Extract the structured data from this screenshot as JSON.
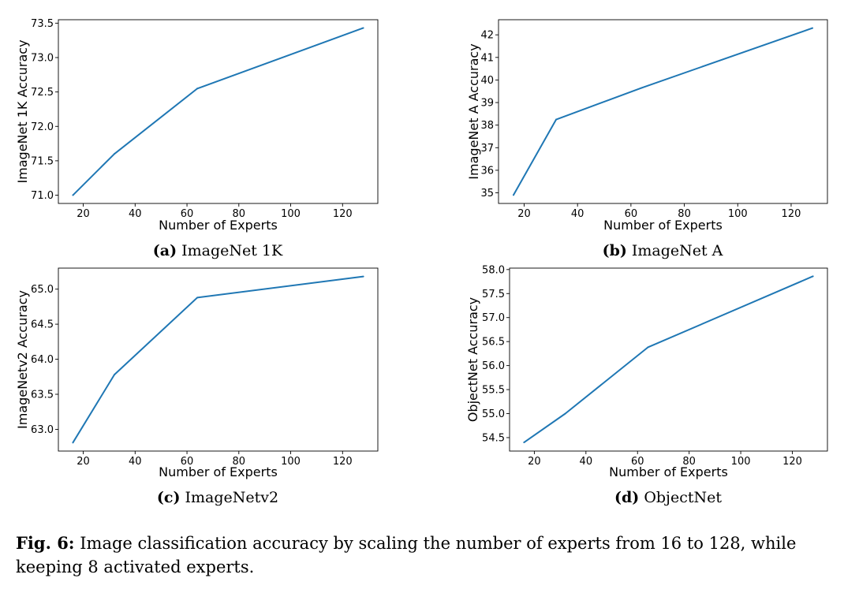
{
  "figure": {
    "label": "Fig. 6:",
    "text": "Image classification accuracy by scaling the number of experts from 16 to 128, while keeping 8 activated experts."
  },
  "line_color": "#1f77b4",
  "chart_data": [
    {
      "type": "line",
      "panel_label": "(a)",
      "panel_title": "ImageNet 1K",
      "xlabel": "Number of Experts",
      "ylabel": "ImageNet 1K Accuracy",
      "x": [
        16,
        32,
        64,
        128
      ],
      "y": [
        71.0,
        71.6,
        72.55,
        73.43
      ],
      "xlim": [
        10.4,
        133.6
      ],
      "ylim": [
        70.88,
        73.55
      ],
      "xticks": [
        20,
        40,
        60,
        80,
        100,
        120
      ],
      "xtick_labels": [
        "20",
        "40",
        "60",
        "80",
        "100",
        "120"
      ],
      "yticks": [
        71.0,
        71.5,
        72.0,
        72.5,
        73.0,
        73.5
      ],
      "ytick_labels": [
        "71.0",
        "71.5",
        "72.0",
        "72.5",
        "73.0",
        "73.5"
      ],
      "grid": false
    },
    {
      "type": "line",
      "panel_label": "(b)",
      "panel_title": "ImageNet A",
      "xlabel": "Number of Experts",
      "ylabel": "ImageNet A Accuracy",
      "x": [
        16,
        32,
        64,
        128
      ],
      "y": [
        34.9,
        38.25,
        39.65,
        42.3
      ],
      "xlim": [
        10.4,
        133.6
      ],
      "ylim": [
        34.53,
        42.67
      ],
      "xticks": [
        20,
        40,
        60,
        80,
        100,
        120
      ],
      "xtick_labels": [
        "20",
        "40",
        "60",
        "80",
        "100",
        "120"
      ],
      "yticks": [
        35,
        36,
        37,
        38,
        39,
        40,
        41,
        42
      ],
      "ytick_labels": [
        "35",
        "36",
        "37",
        "38",
        "39",
        "40",
        "41",
        "42"
      ],
      "grid": false
    },
    {
      "type": "line",
      "panel_label": "(c)",
      "panel_title": "ImageNetv2",
      "xlabel": "Number of Experts",
      "ylabel": "ImageNetv2 Accuracy",
      "x": [
        16,
        32,
        64,
        128
      ],
      "y": [
        62.81,
        63.78,
        64.88,
        65.18
      ],
      "xlim": [
        10.4,
        133.6
      ],
      "ylim": [
        62.69,
        65.3
      ],
      "xticks": [
        20,
        40,
        60,
        80,
        100,
        120
      ],
      "xtick_labels": [
        "20",
        "40",
        "60",
        "80",
        "100",
        "120"
      ],
      "yticks": [
        63.0,
        63.5,
        64.0,
        64.5,
        65.0
      ],
      "ytick_labels": [
        "63.0",
        "63.5",
        "64.0",
        "64.5",
        "65.0"
      ],
      "grid": false
    },
    {
      "type": "line",
      "panel_label": "(d)",
      "panel_title": "ObjectNet",
      "xlabel": "Number of Experts",
      "ylabel": "ObjectNet Accuracy",
      "x": [
        16,
        32,
        64,
        128
      ],
      "y": [
        54.4,
        55.0,
        56.38,
        57.86
      ],
      "xlim": [
        10.4,
        133.6
      ],
      "ylim": [
        54.22,
        58.03
      ],
      "xticks": [
        20,
        40,
        60,
        80,
        100,
        120
      ],
      "xtick_labels": [
        "20",
        "40",
        "60",
        "80",
        "100",
        "120"
      ],
      "yticks": [
        54.5,
        55.0,
        55.5,
        56.0,
        56.5,
        57.0,
        57.5,
        58.0
      ],
      "ytick_labels": [
        "54.5",
        "55.0",
        "55.5",
        "56.0",
        "56.5",
        "57.0",
        "57.5",
        "58.0"
      ],
      "grid": false
    }
  ]
}
